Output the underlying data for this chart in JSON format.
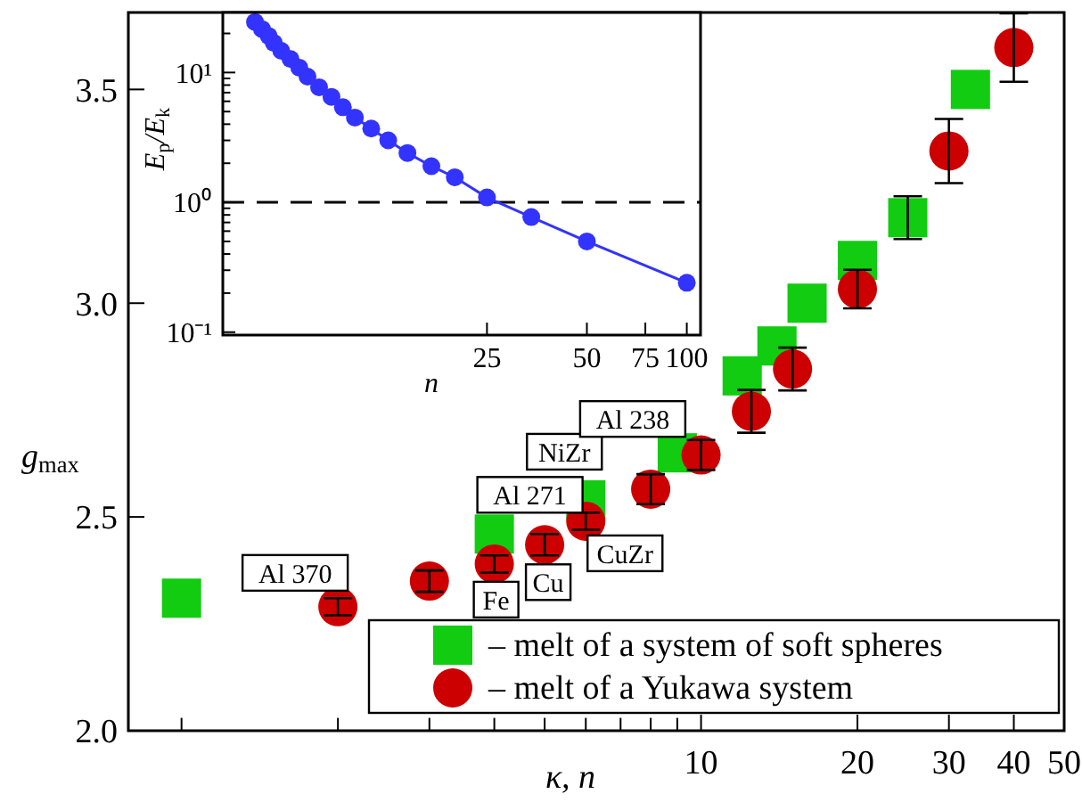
{
  "chart_data": [
    {
      "type": "scatter",
      "xlabel": "κ, n",
      "ylabel": "g$_{max}$",
      "log": "x",
      "xlim": [
        0.79,
        50
      ],
      "ylim": [
        2.0,
        3.68
      ],
      "xticks": [
        {
          "value": 1,
          "label": null
        },
        {
          "value": 2,
          "label": null
        },
        {
          "value": 3,
          "label": null
        },
        {
          "value": 4,
          "label": null
        },
        {
          "value": 5,
          "label": null
        },
        {
          "value": 6,
          "label": null
        },
        {
          "value": 7,
          "label": null
        },
        {
          "value": 8,
          "label": null
        },
        {
          "value": 9,
          "label": null
        },
        10,
        20,
        30,
        40,
        50
      ],
      "yticks": [
        {
          "value": 2,
          "label": "2.0"
        },
        {
          "value": 2.5,
          "label": "2.5"
        },
        {
          "value": 3,
          "label": "3.0"
        },
        {
          "value": 3.5,
          "label": "3.5"
        }
      ],
      "grid": false,
      "legend": "bottom right",
      "series": [
        {
          "name": "– melt of a system of soft spheres",
          "color": "#11cc11",
          "marker": "square",
          "x": [
            1,
            4,
            6,
            9,
            12,
            14,
            16,
            20,
            25,
            33
          ],
          "values": [
            2.31,
            2.46,
            2.54,
            2.65,
            2.83,
            2.9,
            3.0,
            3.1,
            3.2,
            3.5
          ],
          "errors": [
            null,
            null,
            null,
            null,
            null,
            null,
            null,
            null,
            0.05,
            null
          ]
        },
        {
          "name": "– melt of a Yukawa system",
          "color": "#cc0000",
          "marker": "circle",
          "x": [
            2,
            3,
            4,
            5,
            6,
            8,
            10,
            12.5,
            15,
            20,
            30,
            40
          ],
          "values": [
            2.29,
            2.35,
            2.39,
            2.435,
            2.49,
            2.565,
            2.645,
            2.747,
            2.846,
            3.033,
            3.356,
            3.598
          ],
          "errors": [
            0.02,
            0.025,
            0.02,
            0.025,
            0.02,
            0.035,
            0.035,
            0.05,
            0.05,
            0.045,
            0.075,
            0.08
          ]
        }
      ],
      "annotations": [
        {
          "text": "Al 370",
          "x": 2,
          "y": 2.29
        },
        {
          "text": "Fe",
          "x": 4,
          "y": 2.39
        },
        {
          "text": "Al 271",
          "x": 4,
          "y": 2.46
        },
        {
          "text": "Cu",
          "x": 5,
          "y": 2.435
        },
        {
          "text": "NiZr",
          "x": 6,
          "y": 2.54
        },
        {
          "text": "CuZr",
          "x": 6,
          "y": 2.49
        },
        {
          "text": "Al 238",
          "x": 9,
          "y": 2.65
        }
      ]
    },
    {
      "type": "line",
      "xlabel": "n",
      "ylabel": "E$_{p}$/E$_{k}$",
      "log": "xy",
      "xlim": [
        4,
        110
      ],
      "ylim": [
        0.095,
        29
      ],
      "xticks": [
        25,
        50,
        75,
        100
      ],
      "yticks": [
        {
          "value": 0.1,
          "label": "10⁻¹"
        },
        {
          "value": 0.2,
          "label": null
        },
        {
          "value": 0.3,
          "label": null
        },
        {
          "value": 0.4,
          "label": null
        },
        {
          "value": 0.5,
          "label": null
        },
        {
          "value": 0.6,
          "label": null
        },
        {
          "value": 0.7,
          "label": null
        },
        {
          "value": 0.8,
          "label": null
        },
        {
          "value": 0.9,
          "label": null
        },
        {
          "value": 1,
          "label": "10⁰"
        },
        {
          "value": 2,
          "label": null
        },
        {
          "value": 3,
          "label": null
        },
        {
          "value": 4,
          "label": null
        },
        {
          "value": 5,
          "label": null
        },
        {
          "value": 6,
          "label": null
        },
        {
          "value": 7,
          "label": null
        },
        {
          "value": 8,
          "label": null
        },
        {
          "value": 9,
          "label": null
        },
        {
          "value": 10,
          "label": "10¹"
        },
        {
          "value": 20,
          "label": null
        }
      ],
      "grid": false,
      "marker": "circle",
      "ref_lines": [
        {
          "axis": "y",
          "value": 1,
          "line_style": "dashed",
          "color": "#000000"
        }
      ],
      "series": [
        {
          "color": "#3333ff",
          "x": [
            5,
            5.25,
            5.5,
            5.7,
            6,
            6.4,
            6.8,
            7.2,
            7.8,
            8.5,
            9.2,
            10,
            11.2,
            12.6,
            14.4,
            17,
            20,
            25,
            34,
            50,
            100
          ],
          "values": [
            24.5,
            21.6,
            19.1,
            16.9,
            14.7,
            12.7,
            10.9,
            9.3,
            7.7,
            6.5,
            5.4,
            4.5,
            3.7,
            3.0,
            2.4,
            1.9,
            1.56,
            1.09,
            0.77,
            0.5,
            0.24
          ]
        }
      ]
    }
  ]
}
